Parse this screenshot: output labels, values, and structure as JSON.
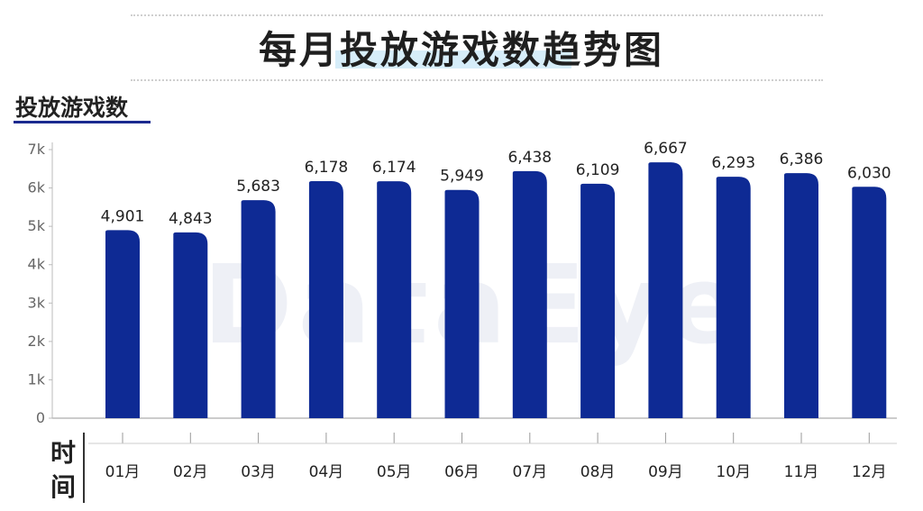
{
  "chart_data": {
    "type": "bar",
    "title": "每月投放游戏数趋势图",
    "ylabel": "投放游戏数",
    "xlabel": "时间",
    "categories": [
      "01月",
      "02月",
      "03月",
      "04月",
      "05月",
      "06月",
      "07月",
      "08月",
      "09月",
      "10月",
      "11月",
      "12月"
    ],
    "values": [
      4901,
      4843,
      5683,
      6178,
      6174,
      5949,
      6438,
      6109,
      6667,
      6293,
      6386,
      6030
    ],
    "value_labels": [
      "4,901",
      "4,843",
      "5,683",
      "6,178",
      "6,174",
      "5,949",
      "6,438",
      "6,109",
      "6,667",
      "6,293",
      "6,386",
      "6,030"
    ],
    "ylim": [
      0,
      7000
    ],
    "yticks": [
      0,
      1000,
      2000,
      3000,
      4000,
      5000,
      6000,
      7000
    ],
    "ytick_labels": [
      "0",
      "1k",
      "2k",
      "3k",
      "4k",
      "5k",
      "6k",
      "7k"
    ],
    "grid": false,
    "bar_color": "#0e2a94"
  },
  "watermark": "DataEye"
}
